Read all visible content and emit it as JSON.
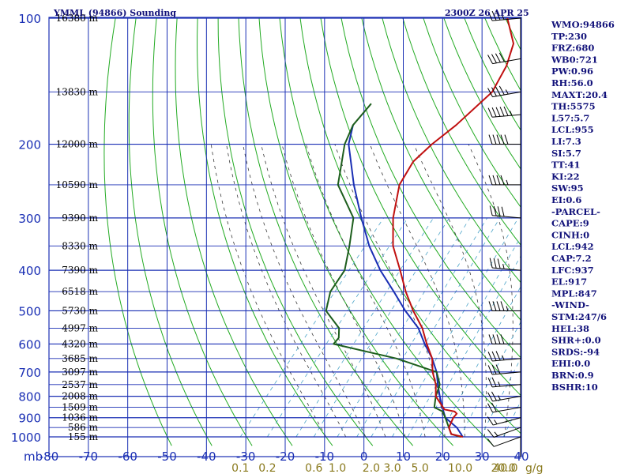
{
  "header": {
    "station": "YMML (94866) Sounding",
    "time": "2300Z 26 APR 25"
  },
  "indices": [
    "WMO:94866",
    "TP:230",
    "FRZ:680",
    "WB0:721",
    "PW:0.96",
    "RH:56.0",
    "MAXT:20.4",
    "TH:5575",
    "L57:5.7",
    "LCL:955",
    "LI:7.3",
    "SI:5.7",
    "TT:41",
    "KI:22",
    "SW:95",
    "EI:0.6",
    "-PARCEL-",
    "CAPE:9",
    "CINH:0",
    "LCL:942",
    "CAP:7.2",
    "LFC:937",
    "EL:917",
    "MPL:847",
    "-WIND-",
    "STM:247/6",
    "HEL:38",
    "SHR+:0.0",
    "SRDS:-94",
    "EHI:0.0",
    "BRN:0.9",
    "BSHR:10"
  ],
  "colors": {
    "grid": "#1a2fb4",
    "dry_adiabat": "#22aa22",
    "moist_adiabat": "#3a3a3a",
    "mixing_ratio": "#4aa3c8",
    "temperature": "#c01010",
    "dewpoint": "#1d5e1d",
    "parcel": "#1a2fb4",
    "wind": "#000000"
  },
  "chart_data": {
    "type": "skew-t",
    "x_axis": {
      "unit": "°C",
      "range": [
        -80,
        40
      ],
      "ticks": [
        "-80",
        "-70",
        "-60",
        "-50",
        "-40",
        "-30",
        "-20",
        "-10",
        "0",
        "10",
        "20",
        "30",
        "40"
      ]
    },
    "y_axis": {
      "unit": "mb",
      "range": [
        100,
        1000
      ],
      "ticks": [
        "100",
        "200",
        "300",
        "400",
        "500",
        "600",
        "700",
        "800",
        "900",
        "1000"
      ]
    },
    "axis_unit_label": "mb",
    "mixing_ratio_unit": "g/g",
    "height_labels": [
      {
        "p": 100,
        "text": "16380 m"
      },
      {
        "p": 150,
        "text": "13830 m"
      },
      {
        "p": 200,
        "text": "12000 m"
      },
      {
        "p": 250,
        "text": "10590 m"
      },
      {
        "p": 300,
        "text": "9390 m"
      },
      {
        "p": 350,
        "text": "8330 m"
      },
      {
        "p": 400,
        "text": "7390 m"
      },
      {
        "p": 450,
        "text": "6518 m"
      },
      {
        "p": 500,
        "text": "5730 m"
      },
      {
        "p": 550,
        "text": "4997 m"
      },
      {
        "p": 600,
        "text": "4320 m"
      },
      {
        "p": 650,
        "text": "3685 m"
      },
      {
        "p": 700,
        "text": "3097 m"
      },
      {
        "p": 750,
        "text": "2537 m"
      },
      {
        "p": 800,
        "text": "2008 m"
      },
      {
        "p": 850,
        "text": "1509 m"
      },
      {
        "p": 900,
        "text": "1036 m"
      },
      {
        "p": 950,
        "text": "586 m"
      },
      {
        "p": 1000,
        "text": "155 m"
      }
    ],
    "mixing_ratio_labels": [
      {
        "w": 0.1,
        "text": "0.1"
      },
      {
        "w": 0.2,
        "text": "0.2"
      },
      {
        "w": 0.6,
        "text": "0.6"
      },
      {
        "w": 1.0,
        "text": "1.0"
      },
      {
        "w": 2.0,
        "text": "2.0"
      },
      {
        "w": 3.0,
        "text": "3.0"
      },
      {
        "w": 5.0,
        "text": "5.0"
      },
      {
        "w": 10.0,
        "text": "10.0"
      },
      {
        "w": 20.0,
        "text": "20.0"
      },
      {
        "w": 40.0,
        "text": "40.0"
      }
    ],
    "temperature": [
      [
        1000,
        14.5
      ],
      [
        985,
        11
      ],
      [
        950,
        9
      ],
      [
        900,
        8
      ],
      [
        880,
        8
      ],
      [
        870,
        7
      ],
      [
        860,
        4
      ],
      [
        800,
        -1
      ],
      [
        750,
        -3.5
      ],
      [
        700,
        -7
      ],
      [
        650,
        -10
      ],
      [
        600,
        -14.5
      ],
      [
        550,
        -19
      ],
      [
        500,
        -25
      ],
      [
        450,
        -31
      ],
      [
        400,
        -37
      ],
      [
        350,
        -44
      ],
      [
        300,
        -50
      ],
      [
        250,
        -55.5
      ],
      [
        220,
        -57
      ],
      [
        200,
        -56
      ],
      [
        180,
        -54
      ],
      [
        150,
        -52
      ],
      [
        130,
        -54
      ],
      [
        115,
        -57
      ],
      [
        100,
        -64
      ]
    ],
    "dewpoint": [
      [
        1000,
        14
      ],
      [
        985,
        11
      ],
      [
        950,
        9
      ],
      [
        900,
        6
      ],
      [
        870,
        4
      ],
      [
        850,
        1
      ],
      [
        800,
        -1
      ],
      [
        750,
        -2.5
      ],
      [
        700,
        -6
      ],
      [
        650,
        -19
      ],
      [
        600,
        -38
      ],
      [
        580,
        -38
      ],
      [
        550,
        -40
      ],
      [
        500,
        -47
      ],
      [
        450,
        -50
      ],
      [
        400,
        -51
      ],
      [
        350,
        -55
      ],
      [
        300,
        -60
      ],
      [
        250,
        -71
      ],
      [
        220,
        -75
      ],
      [
        200,
        -78
      ],
      [
        180,
        -80
      ],
      [
        160,
        -80
      ]
    ],
    "parcel": [
      [
        1000,
        14.5
      ],
      [
        950,
        11
      ],
      [
        900,
        6
      ],
      [
        850,
        3
      ],
      [
        800,
        0
      ],
      [
        750,
        -3
      ],
      [
        700,
        -6
      ],
      [
        650,
        -10
      ],
      [
        600,
        -15
      ],
      [
        550,
        -20
      ],
      [
        500,
        -27
      ],
      [
        450,
        -34
      ],
      [
        400,
        -42
      ],
      [
        350,
        -50
      ],
      [
        300,
        -58
      ],
      [
        250,
        -67
      ],
      [
        200,
        -77
      ],
      [
        180,
        -80
      ]
    ],
    "wind_barbs": [
      {
        "p": 1000,
        "dir": 250,
        "spd": 10
      },
      {
        "p": 950,
        "dir": 250,
        "spd": 15
      },
      {
        "p": 900,
        "dir": 255,
        "spd": 15
      },
      {
        "p": 850,
        "dir": 260,
        "spd": 20
      },
      {
        "p": 800,
        "dir": 260,
        "spd": 25
      },
      {
        "p": 750,
        "dir": 265,
        "spd": 25
      },
      {
        "p": 700,
        "dir": 265,
        "spd": 30
      },
      {
        "p": 650,
        "dir": 265,
        "spd": 35
      },
      {
        "p": 600,
        "dir": 270,
        "spd": 40
      },
      {
        "p": 500,
        "dir": 270,
        "spd": 45
      },
      {
        "p": 400,
        "dir": 275,
        "spd": 35
      },
      {
        "p": 300,
        "dir": 275,
        "spd": 40
      },
      {
        "p": 250,
        "dir": 270,
        "spd": 45
      },
      {
        "p": 200,
        "dir": 270,
        "spd": 50
      },
      {
        "p": 170,
        "dir": 265,
        "spd": 55
      },
      {
        "p": 150,
        "dir": 260,
        "spd": 45
      },
      {
        "p": 125,
        "dir": 260,
        "spd": 40
      },
      {
        "p": 100,
        "dir": 265,
        "spd": 35
      }
    ],
    "grid": true
  }
}
